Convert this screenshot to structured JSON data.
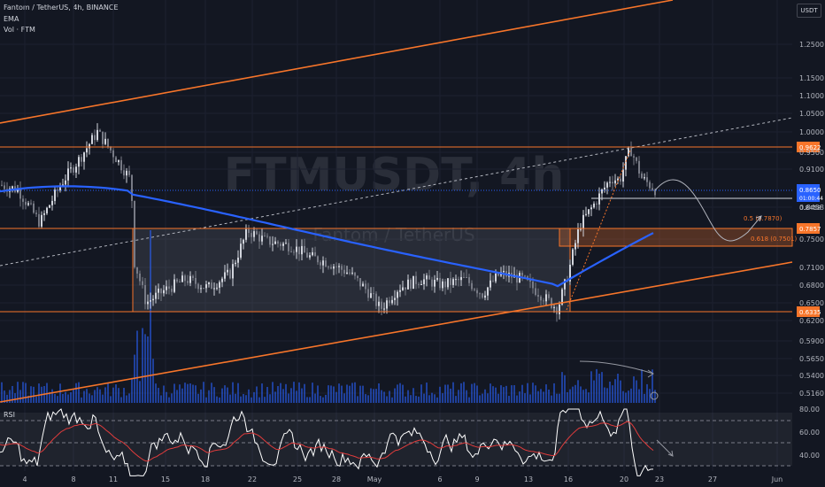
{
  "header": {
    "symbol_line": "Fantom / TetherUS, 4h, BINANCE",
    "indicator_1": "EMA",
    "indicator_2": "Vol · FTM",
    "rsi_label": "RSI"
  },
  "watermark": {
    "ticker": "FTMUSDT, 4h",
    "name": "Fantom / TetherUS"
  },
  "currency_button": "USDT",
  "colors": {
    "background": "#131722",
    "up": "#d1d4dc",
    "down": "#787b86",
    "ema": "#2962ff",
    "orange": "#f7752a",
    "volume": "#2962ff",
    "rsi": "#ffffff",
    "rsi_ma": "#e03c3c"
  },
  "chart_data": {
    "type": "candlestick",
    "symbol": "FTMUSDT",
    "interval": "4h",
    "exchange": "BINANCE",
    "y_scale": "log",
    "price_axis_ticks": [
      "1.2500",
      "1.1500",
      "1.1000",
      "1.0500",
      "1.0000",
      "0.9500",
      "0.9100",
      "0.8458",
      "0.7500",
      "0.7100",
      "0.6800",
      "0.6500",
      "0.6200",
      "0.5900",
      "0.5650",
      "0.5400",
      "0.5160"
    ],
    "time_axis_ticks": [
      "4",
      "8",
      "11",
      "15",
      "18",
      "22",
      "25",
      "28",
      "May",
      "6",
      "9",
      "13",
      "16",
      "20",
      "23",
      "27",
      "Jun"
    ],
    "horizontal_levels": [
      {
        "label": "0.9622",
        "price": 0.9622
      },
      {
        "label": "0.7857",
        "price": 0.7857
      },
      {
        "label": "0.6335",
        "price": 0.6335
      }
    ],
    "price_labels": [
      {
        "label": "0.8650",
        "sublabel": "01:00:44",
        "price": 0.865
      },
      {
        "label": "0.8458",
        "price": 0.8458
      }
    ],
    "fib_labels": [
      {
        "label": "0.5 (0.7870)",
        "price": 0.787
      },
      {
        "label": "0.618 (0.7501)",
        "price": 0.7501
      }
    ],
    "series": [
      {
        "name": "EMA",
        "type": "line"
      },
      {
        "name": "Vol · FTM",
        "type": "bar"
      },
      {
        "name": "RSI",
        "type": "line"
      }
    ],
    "rsi_axis_ticks": [
      "80.00",
      "60.00",
      "40.00"
    ]
  }
}
